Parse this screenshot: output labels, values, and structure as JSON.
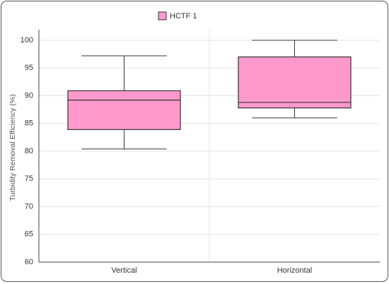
{
  "chart_data": {
    "type": "box",
    "categories": [
      "Vertical",
      "Horizontal"
    ],
    "y_label": "Turbidity Removal Efficiency  (%)",
    "series": [
      {
        "name": "HCTF 1",
        "color": "#ff99cc",
        "low": [
          80.4,
          86.0
        ],
        "q1": [
          83.9,
          87.8
        ],
        "median": [
          89.2,
          88.8
        ],
        "q3": [
          90.9,
          97.0
        ],
        "high": [
          97.2,
          100.0
        ]
      }
    ],
    "ylim": [
      60,
      100
    ],
    "yticks": [
      60,
      65,
      70,
      75,
      80,
      85,
      90,
      95,
      100
    ],
    "grid": true
  }
}
